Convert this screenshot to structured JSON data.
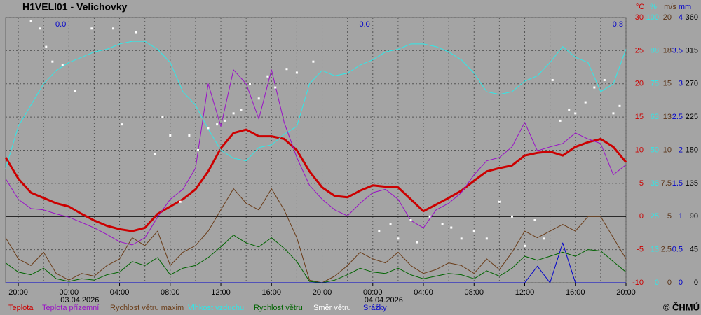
{
  "chart_data": {
    "type": "line",
    "title": "H1VELI01 - Velichovky",
    "xlim": [
      -5,
      44
    ],
    "xticks": [
      {
        "value": -4,
        "label": "20:00"
      },
      {
        "value": 0,
        "label": "00:00"
      },
      {
        "value": 4,
        "label": "04:00"
      },
      {
        "value": 8,
        "label": "08:00"
      },
      {
        "value": 12,
        "label": "12:00"
      },
      {
        "value": 16,
        "label": "16:00"
      },
      {
        "value": 20,
        "label": "20:00"
      },
      {
        "value": 24,
        "label": "00:00"
      },
      {
        "value": 28,
        "label": "04:00"
      },
      {
        "value": 32,
        "label": "08:00"
      },
      {
        "value": 36,
        "label": "12:00"
      },
      {
        "value": 40,
        "label": "16:00"
      },
      {
        "value": 44,
        "label": "20:00"
      }
    ],
    "x_date_labels": [
      {
        "value": 0,
        "label": "03.04.2026"
      },
      {
        "value": 24,
        "label": "04.04.2026"
      }
    ],
    "x_grid_step": 2,
    "grid": true,
    "daily_totals": [
      {
        "x": 0,
        "value": 0,
        "label": "0.0"
      },
      {
        "x": 24,
        "value": 0,
        "label": "0.0"
      },
      {
        "x": 44,
        "value": 0.8,
        "label": "0.8"
      }
    ],
    "axes": [
      {
        "name": "°C",
        "color": "#cc0000",
        "ylim": [
          -10,
          30
        ],
        "yticks": [
          30,
          25,
          20,
          15,
          10,
          5,
          0,
          -5,
          -10
        ]
      },
      {
        "name": "%",
        "color": "#30e8e8",
        "ylim": [
          0,
          100
        ],
        "yticks": [
          100,
          {
            "value": 87.5,
            "label": "88"
          },
          75,
          {
            "value": 62.5,
            "label": "63"
          },
          50,
          {
            "value": 37.5,
            "label": "38"
          },
          25,
          {
            "value": 12.5,
            "label": "13"
          },
          0
        ]
      },
      {
        "name": "m/s",
        "color": "#5a3418",
        "ylim": [
          0,
          20
        ],
        "yticks": [
          20,
          {
            "value": 17.5,
            "label": "18"
          },
          15,
          {
            "value": 12.5,
            "label": "13"
          },
          10,
          7.5,
          5,
          2.5,
          0
        ]
      },
      {
        "name": "mm",
        "color": "#0000cc",
        "ylim": [
          0,
          4
        ],
        "yticks": [
          4,
          3.5,
          3,
          2.5,
          2,
          1.5,
          1,
          0.5,
          0
        ]
      },
      {
        "color": "#000000",
        "ylim": [
          0,
          360
        ],
        "yticks": [
          360,
          315,
          270,
          225,
          180,
          135,
          90,
          45,
          0
        ]
      }
    ],
    "x": [
      -5,
      -4,
      -3,
      -2,
      -1,
      0,
      1,
      2,
      3,
      4,
      5,
      6,
      7,
      8,
      9,
      10,
      11,
      12,
      13,
      14,
      15,
      16,
      17,
      18,
      19,
      20,
      21,
      22,
      23,
      24,
      25,
      26,
      27,
      28,
      29,
      30,
      31,
      32,
      33,
      34,
      35,
      36,
      37,
      38,
      39,
      40,
      41,
      42,
      43,
      44
    ],
    "series": [
      {
        "name": "Teplota",
        "color": "#cc0000",
        "axis": 0,
        "bold": true,
        "values": [
          8.9,
          5.7,
          3.6,
          2.8,
          2.0,
          1.5,
          0.4,
          -0.6,
          -1.4,
          -1.9,
          -2.2,
          -1.7,
          0.4,
          1.5,
          2.6,
          4.1,
          6.8,
          10.3,
          12.6,
          13.1,
          12.1,
          12.1,
          11.7,
          10.0,
          6.8,
          4.4,
          3.1,
          2.9,
          3.9,
          4.7,
          4.5,
          4.4,
          2.6,
          0.8,
          1.8,
          2.8,
          3.9,
          5.4,
          6.8,
          7.3,
          7.7,
          9.2,
          9.6,
          9.8,
          9.2,
          10.5,
          11.2,
          11.7,
          10.5,
          8.2
        ]
      },
      {
        "name": "Teplota přízemní",
        "color": "#9a10c8",
        "axis": 0,
        "values": [
          5.7,
          2.6,
          1.2,
          1.0,
          0.4,
          -0.1,
          -0.9,
          -1.7,
          -2.7,
          -3.8,
          -4.3,
          -3.2,
          -0.1,
          2.6,
          4.1,
          7.3,
          20.0,
          13.6,
          22.1,
          20.0,
          14.7,
          22.1,
          14.2,
          8.9,
          4.7,
          2.6,
          1.0,
          0.1,
          2.0,
          3.6,
          4.1,
          2.6,
          -0.6,
          -1.7,
          1.0,
          2.0,
          3.6,
          6.3,
          8.4,
          8.9,
          10.5,
          14.2,
          9.9,
          10.5,
          11.0,
          12.6,
          11.7,
          11.0,
          6.3,
          7.8
        ]
      },
      {
        "name": "Rychlost větru maxim",
        "color": "#6a3c18",
        "axis": 2,
        "values": [
          3.4,
          1.8,
          1.3,
          2.3,
          0.7,
          0.2,
          0.7,
          0.5,
          1.3,
          1.8,
          3.4,
          2.8,
          3.9,
          1.3,
          2.3,
          2.8,
          3.9,
          5.5,
          7.1,
          6.0,
          5.5,
          7.1,
          5.5,
          3.4,
          0.2,
          0,
          0.5,
          1.3,
          2.3,
          1.8,
          1.5,
          2.3,
          1.3,
          0.7,
          1.0,
          1.5,
          1.3,
          0.7,
          1.8,
          1.0,
          2.3,
          3.9,
          3.4,
          3.9,
          4.4,
          3.9,
          5.0,
          5.0,
          3.4,
          1.8
        ]
      },
      {
        "name": "Vlhkost vzduchu",
        "color": "#30e8e8",
        "axis": 1,
        "values": [
          43,
          59,
          67,
          75,
          80,
          83,
          85,
          87,
          88,
          90,
          91,
          91,
          88,
          83,
          72,
          67,
          58,
          50,
          47,
          46,
          51,
          52,
          56,
          59,
          75,
          80,
          78,
          79,
          82,
          84,
          87,
          88,
          90,
          90,
          89,
          87,
          84,
          79,
          72,
          71,
          72,
          76,
          78,
          83,
          89,
          85,
          83,
          72,
          75,
          88
        ]
      },
      {
        "name": "Rychlost větru",
        "color": "#006400",
        "axis": 2,
        "values": [
          1.5,
          0.8,
          0.6,
          1.1,
          0.3,
          0.1,
          0.3,
          0.2,
          0.6,
          0.8,
          1.6,
          1.3,
          1.9,
          0.6,
          1.1,
          1.3,
          1.9,
          2.7,
          3.6,
          3.0,
          2.7,
          3.4,
          2.6,
          1.6,
          0.1,
          0,
          0.2,
          0.6,
          1.1,
          0.8,
          0.7,
          1.1,
          0.6,
          0.3,
          0.5,
          0.7,
          0.6,
          0.3,
          0.9,
          0.5,
          1.1,
          2.0,
          1.7,
          2.0,
          2.3,
          2.0,
          2.5,
          2.4,
          1.6,
          0.8
        ]
      },
      {
        "name": "Směr  větru",
        "color": "#ffffff",
        "axis": 4,
        "kind": "scatter",
        "x": [
          -3,
          -2.3,
          -1.8,
          -1.3,
          -0.5,
          0.5,
          1.8,
          3.5,
          4.2,
          5.3,
          6.8,
          7.4,
          8,
          8.8,
          9.5,
          10.2,
          11,
          11.7,
          12.3,
          13,
          13.6,
          14.3,
          15,
          15.7,
          16.3,
          17.2,
          18,
          19.3,
          24.5,
          25.4,
          26,
          27,
          27.5,
          28.5,
          29.5,
          30.2,
          31,
          32,
          33,
          34,
          35,
          36,
          36.8,
          37.5,
          38.2,
          38.8,
          39.5,
          40,
          40.8,
          41.5,
          42.3,
          43,
          43.5
        ],
        "values": [
          355,
          345,
          320,
          300,
          295,
          260,
          345,
          345,
          215,
          340,
          175,
          225,
          200,
          110,
          200,
          180,
          210,
          215,
          220,
          230,
          235,
          270,
          250,
          280,
          265,
          290,
          285,
          300,
          70,
          80,
          60,
          85,
          55,
          90,
          80,
          75,
          60,
          70,
          60,
          110,
          90,
          50,
          85,
          60,
          275,
          220,
          235,
          230,
          245,
          265,
          275,
          230,
          240
        ]
      },
      {
        "name": "Srážky",
        "color": "#0000cc",
        "axis": 3,
        "values": [
          0,
          0,
          0,
          0,
          0,
          0,
          0,
          0,
          0,
          0,
          0,
          0,
          0,
          0,
          0,
          0,
          0,
          0,
          0,
          0,
          0,
          0,
          0,
          0,
          0,
          0,
          0,
          0,
          0,
          0,
          0,
          0,
          0,
          0,
          0,
          0,
          0,
          0,
          0,
          0,
          0,
          0,
          0.25,
          0,
          0.6,
          0,
          0,
          0,
          0,
          0
        ]
      }
    ],
    "copyright": "© ČHMÚ"
  }
}
